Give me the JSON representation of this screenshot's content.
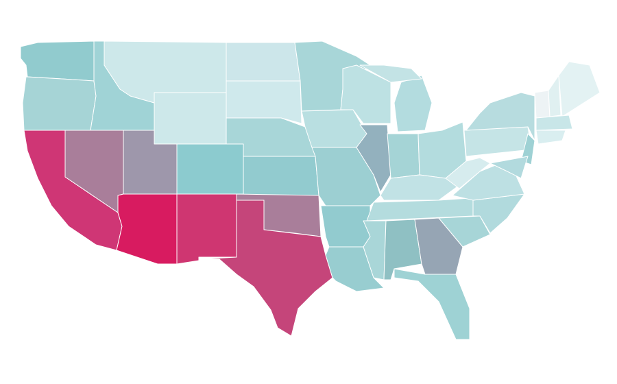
{
  "map": {
    "region_colors": [
      "#91cbce",
      "#a6d4d6",
      "#cf3675",
      "#a97e9a",
      "#a0d3d6",
      "#cde8ea",
      "#cde8ea",
      "#9e97ab",
      "#8ccbcf",
      "#d81b60",
      "#cf3671",
      "#cce6ea",
      "#cfe9ec",
      "#a8d6d8",
      "#92cbcf",
      "#a97e9a",
      "#c5457a",
      "#a8d6d8",
      "#b9dfe1",
      "#9ccfd2",
      "#92cbcf",
      "#98cdd0",
      "#bde1e3",
      "#93b1be",
      "#b3dcdf",
      "#c3e3e5",
      "#a5d4d6",
      "#b3dcde",
      "#c1e2e5",
      "#b4dcde",
      "#a9d6d8",
      "#8fc0c3",
      "#96a5b4",
      "#9ed2d4",
      "#a7d5d7",
      "#b1dadd",
      "#bde0e3",
      "#d6ecee",
      "#c5e4e6",
      "#b7dcdf",
      "#9ed1d4",
      "#b2dade",
      "#edf3f5",
      "#e0f0f1",
      "#e3f2f3",
      "#c8e6e8",
      "#d9eef0"
    ]
  }
}
